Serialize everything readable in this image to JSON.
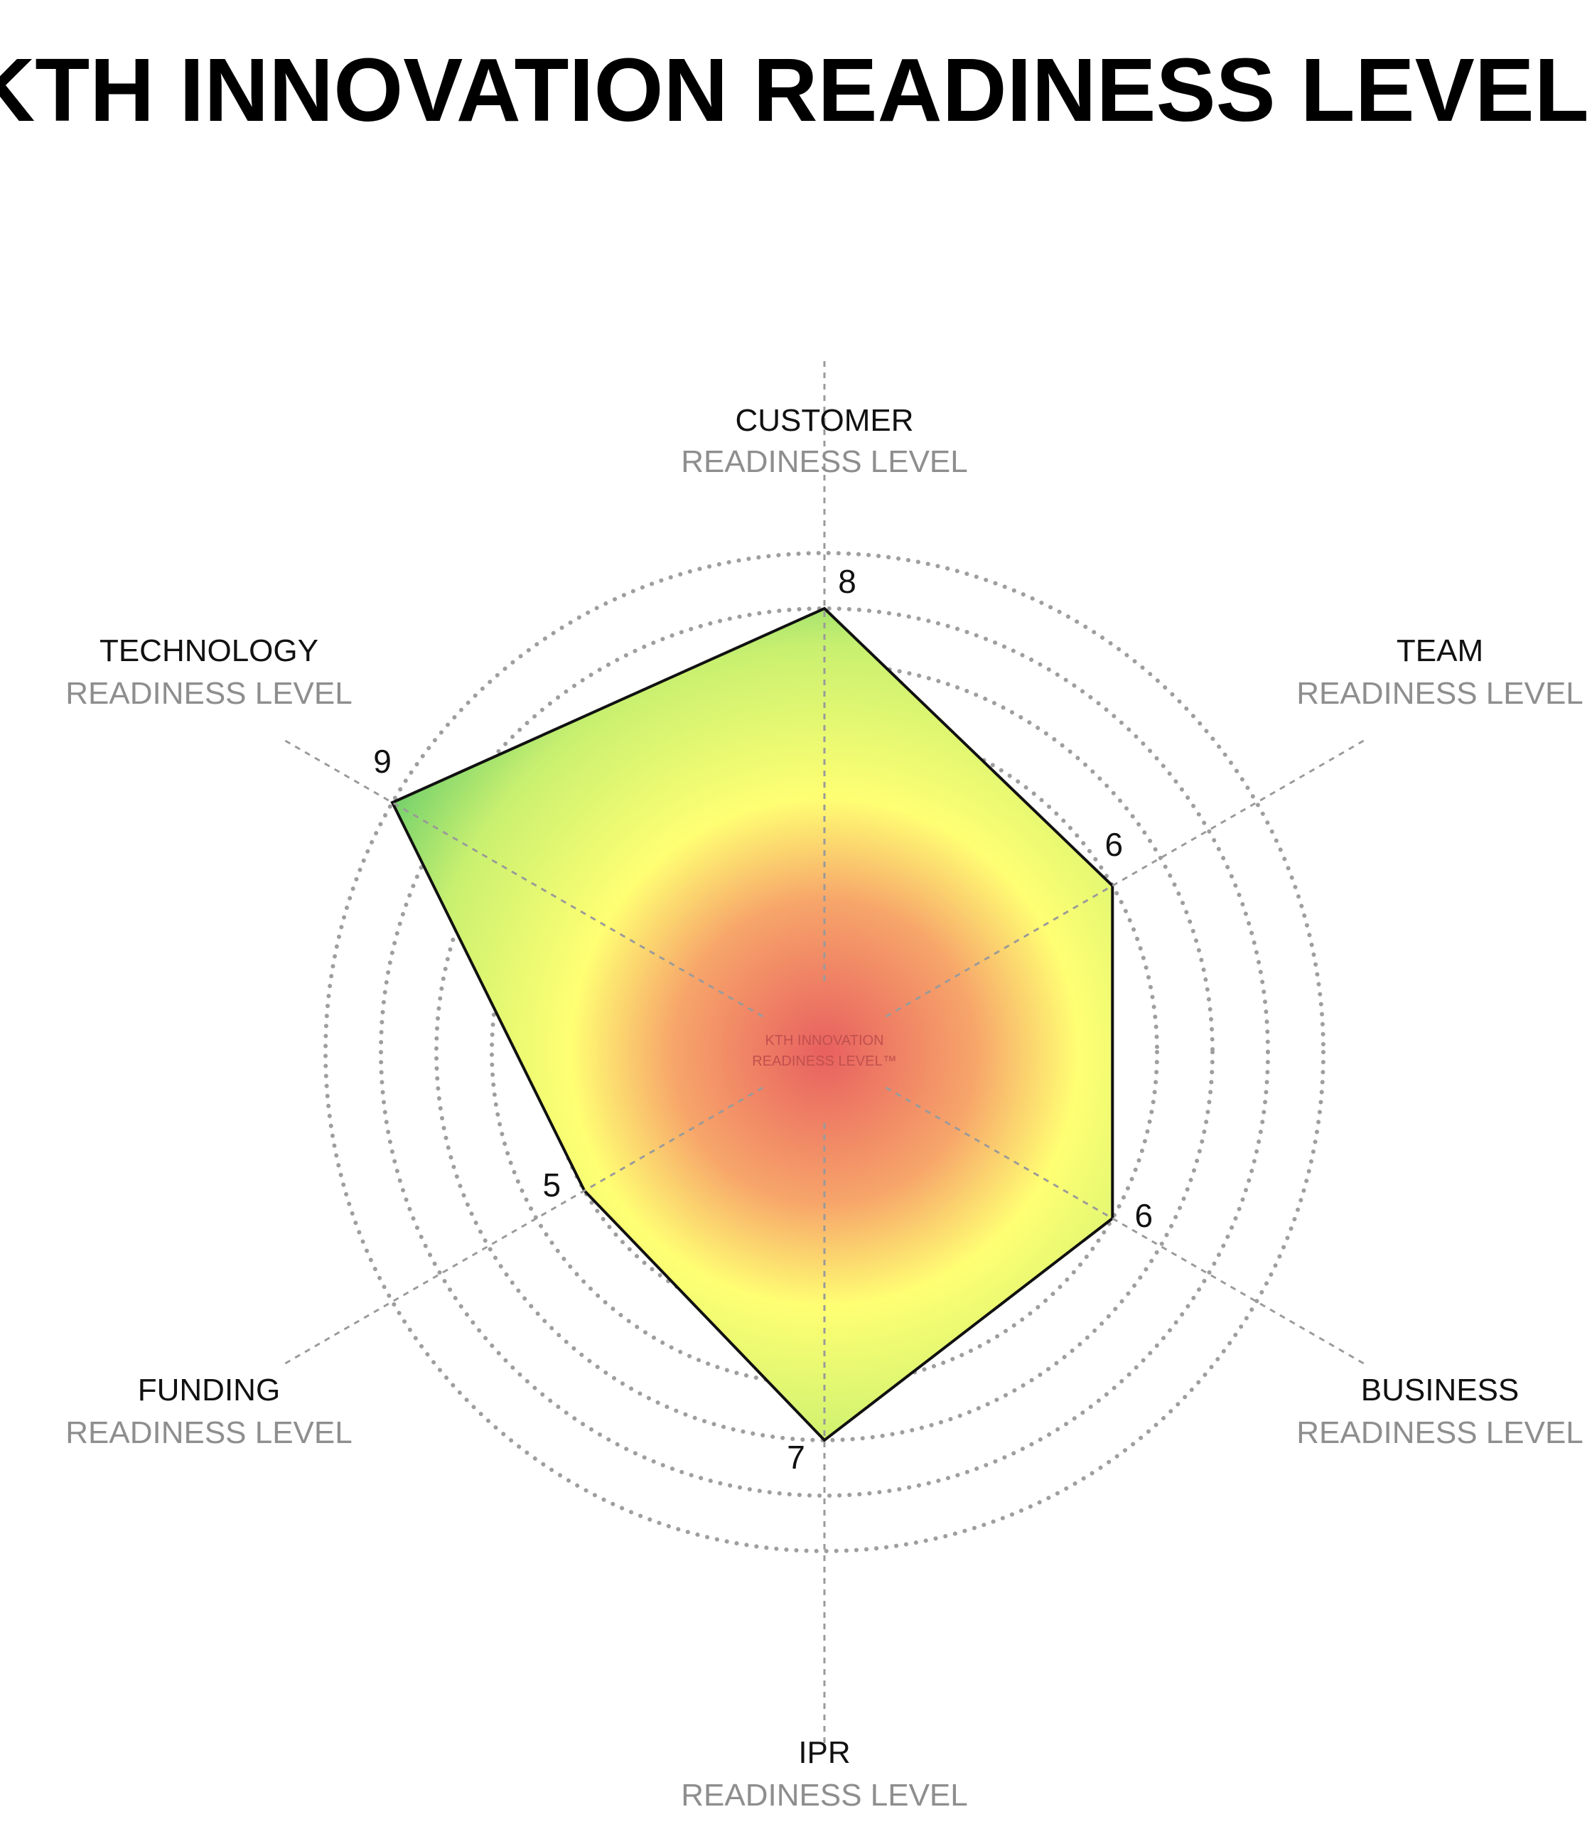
{
  "title": "KTH INNOVATION READINESS LEVEL™",
  "center_label": {
    "line1": "KTH INNOVATION",
    "line2": "READINESS LEVEL™"
  },
  "colors": {
    "axis": "#9a9a9a",
    "ring": "#9e9e9e",
    "outline": "#111111",
    "gradient_center": "#e86060",
    "gradient_mid": "#f7a56a",
    "gradient_yellow": "#ffff73",
    "gradient_green": "#4fc36a"
  },
  "chart_data": {
    "type": "radar",
    "title": "KTH INNOVATION READINESS LEVEL™",
    "rmax": 9,
    "rings": [
      1,
      2,
      3,
      4,
      5,
      6,
      7,
      8,
      9
    ],
    "grid": "dotted concentric circles",
    "axes": [
      {
        "name": "CUSTOMER",
        "sub": "READINESS LEVEL",
        "value": 8
      },
      {
        "name": "TEAM",
        "sub": "READINESS LEVEL",
        "value": 6
      },
      {
        "name": "BUSINESS",
        "sub": "READINESS LEVEL",
        "value": 6
      },
      {
        "name": "IPR",
        "sub": "READINESS LEVEL",
        "value": 7
      },
      {
        "name": "FUNDING",
        "sub": "READINESS LEVEL",
        "value": 5
      },
      {
        "name": "TECHNOLOGY",
        "sub": "READINESS LEVEL",
        "value": 9
      }
    ]
  }
}
